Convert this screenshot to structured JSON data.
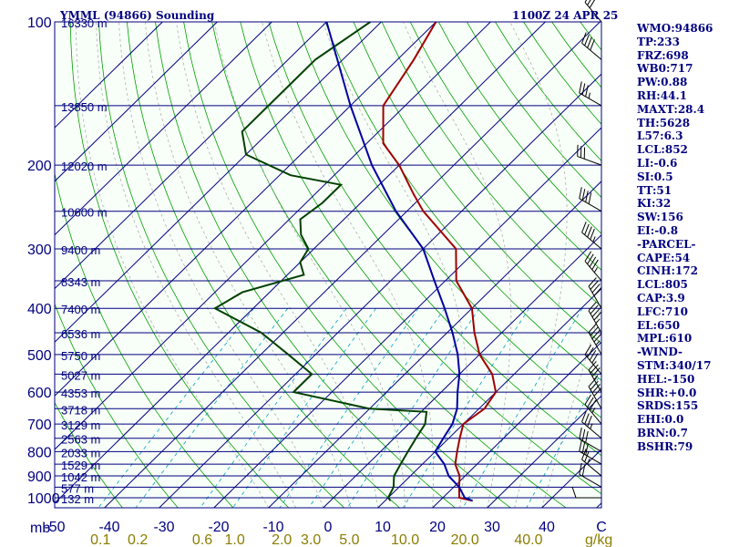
{
  "header": {
    "station": "YMML (94866) Sounding",
    "time": "1100Z 24 APR 25"
  },
  "units": {
    "pressure": "mb",
    "mixing": "g/kg"
  },
  "stats": [
    "WMO:94866",
    "TP:233",
    "FRZ:698",
    "WB0:717",
    "PW:0.88",
    "RH:44.1",
    "MAXT:28.4",
    "TH:5628",
    "L57:6.3",
    "LCL:852",
    "LI:-0.6",
    "SI:0.5",
    "TT:51",
    "KI:32",
    "SW:156",
    "EI:-0.8",
    "-PARCEL-",
    "CAPE:54",
    "CINH:172",
    "LCL:805",
    "CAP:3.9",
    "LFC:710",
    "EL:650",
    "MPL:610",
    "-WIND-",
    "STM:340/17",
    "HEL:-150",
    "SHR:+0.0",
    "SRDS:155",
    "EHI:0.0",
    "BRN:0.7",
    "BSHR:79"
  ],
  "colors": {
    "temperature": "#a00000",
    "dewpoint": "#004000",
    "parcel": "#0000a0",
    "isobar": "#000080",
    "isotherm": "#000080",
    "dry_adiabat": "#00a000",
    "moist_adiabat": "#b0b0b0",
    "mixing_ratio": "#00a0c0"
  },
  "chart_data": {
    "type": "skew-t",
    "pressure_ticks": [
      100,
      200,
      300,
      400,
      500,
      600,
      700,
      800,
      900,
      1000
    ],
    "temperature_ticks": [
      "-50",
      "-40",
      "-30",
      "-20",
      "-10",
      "0",
      "10",
      "20",
      "30",
      "40",
      "C"
    ],
    "temperature_tick_values": [
      -50,
      -40,
      -30,
      -20,
      -10,
      0,
      10,
      20,
      30,
      40,
      50
    ],
    "mixing_ratio_ticks": [
      "0.1",
      "0.2",
      "0.6",
      "1.0",
      "2.0",
      "3.0",
      "5.0",
      "10.0",
      "20.0",
      "40.0"
    ],
    "mixing_ratio_values": [
      0.1,
      0.2,
      0.6,
      1.0,
      2.0,
      3.0,
      5.0,
      10.0,
      20.0,
      40.0
    ],
    "height_labels": [
      {
        "p": 100,
        "label": "16330 m"
      },
      {
        "p": 150,
        "label": "13850 m"
      },
      {
        "p": 200,
        "label": "12020 m"
      },
      {
        "p": 250,
        "label": "10600 m"
      },
      {
        "p": 300,
        "label": "9400 m"
      },
      {
        "p": 350,
        "label": "8343 m"
      },
      {
        "p": 400,
        "label": "7400 m"
      },
      {
        "p": 450,
        "label": "6536 m"
      },
      {
        "p": 500,
        "label": "5750 m"
      },
      {
        "p": 550,
        "label": "5027 m"
      },
      {
        "p": 600,
        "label": "4353 m"
      },
      {
        "p": 650,
        "label": "3718 m"
      },
      {
        "p": 700,
        "label": "3129 m"
      },
      {
        "p": 750,
        "label": "2563 m"
      },
      {
        "p": 800,
        "label": "2033 m"
      },
      {
        "p": 850,
        "label": "1529 m"
      },
      {
        "p": 900,
        "label": "1042 m"
      },
      {
        "p": 950,
        "label": "577 m"
      },
      {
        "p": 1000,
        "label": "132 m"
      }
    ],
    "temperature": [
      [
        1015,
        26
      ],
      [
        1000,
        23
      ],
      [
        950,
        21
      ],
      [
        900,
        19
      ],
      [
        850,
        16
      ],
      [
        800,
        14
      ],
      [
        750,
        12
      ],
      [
        700,
        10
      ],
      [
        650,
        11
      ],
      [
        600,
        10
      ],
      [
        550,
        6
      ],
      [
        500,
        0
      ],
      [
        450,
        -5
      ],
      [
        400,
        -10
      ],
      [
        350,
        -18
      ],
      [
        300,
        -24
      ],
      [
        250,
        -37
      ],
      [
        230,
        -42
      ],
      [
        200,
        -50
      ],
      [
        180,
        -57
      ],
      [
        150,
        -64
      ],
      [
        120,
        -67
      ],
      [
        100,
        -70
      ]
    ],
    "dewpoint": [
      [
        1015,
        11
      ],
      [
        1000,
        10
      ],
      [
        950,
        9
      ],
      [
        900,
        7
      ],
      [
        850,
        6
      ],
      [
        800,
        5
      ],
      [
        750,
        4
      ],
      [
        700,
        3
      ],
      [
        660,
        1
      ],
      [
        650,
        -10
      ],
      [
        600,
        -27
      ],
      [
        550,
        -27
      ],
      [
        500,
        -35
      ],
      [
        450,
        -44
      ],
      [
        400,
        -57
      ],
      [
        370,
        -55
      ],
      [
        340,
        -47
      ],
      [
        320,
        -50
      ],
      [
        300,
        -51
      ],
      [
        280,
        -55
      ],
      [
        260,
        -58
      ],
      [
        240,
        -57
      ],
      [
        220,
        -57
      ],
      [
        210,
        -68
      ],
      [
        190,
        -80
      ],
      [
        170,
        -85
      ],
      [
        150,
        -85
      ],
      [
        120,
        -85
      ],
      [
        100,
        -82
      ]
    ],
    "parcel": [
      [
        1015,
        26
      ],
      [
        1000,
        24
      ],
      [
        950,
        21
      ],
      [
        900,
        17
      ],
      [
        850,
        14
      ],
      [
        800,
        10
      ],
      [
        750,
        9
      ],
      [
        700,
        8
      ],
      [
        650,
        6
      ],
      [
        600,
        3
      ],
      [
        550,
        0
      ],
      [
        500,
        -4
      ],
      [
        450,
        -9
      ],
      [
        400,
        -15
      ],
      [
        350,
        -22
      ],
      [
        300,
        -30
      ],
      [
        250,
        -42
      ],
      [
        200,
        -55
      ],
      [
        150,
        -70
      ],
      [
        100,
        -90
      ]
    ],
    "wind_barbs": [
      {
        "p": 1000,
        "dir": 270,
        "spd": 10
      },
      {
        "p": 950,
        "dir": 300,
        "spd": 20
      },
      {
        "p": 900,
        "dir": 310,
        "spd": 25
      },
      {
        "p": 850,
        "dir": 300,
        "spd": 30
      },
      {
        "p": 800,
        "dir": 300,
        "spd": 30
      },
      {
        "p": 750,
        "dir": 310,
        "spd": 35
      },
      {
        "p": 700,
        "dir": 320,
        "spd": 35
      },
      {
        "p": 650,
        "dir": 330,
        "spd": 40
      },
      {
        "p": 600,
        "dir": 330,
        "spd": 35
      },
      {
        "p": 550,
        "dir": 320,
        "spd": 40
      },
      {
        "p": 500,
        "dir": 330,
        "spd": 45
      },
      {
        "p": 450,
        "dir": 330,
        "spd": 45
      },
      {
        "p": 400,
        "dir": 330,
        "spd": 40
      },
      {
        "p": 350,
        "dir": 320,
        "spd": 45
      },
      {
        "p": 300,
        "dir": 310,
        "spd": 45
      },
      {
        "p": 250,
        "dir": 300,
        "spd": 40
      },
      {
        "p": 200,
        "dir": 290,
        "spd": 30
      },
      {
        "p": 150,
        "dir": 300,
        "spd": 35
      },
      {
        "p": 120,
        "dir": 310,
        "spd": 40
      },
      {
        "p": 100,
        "dir": 320,
        "spd": 30
      }
    ]
  }
}
